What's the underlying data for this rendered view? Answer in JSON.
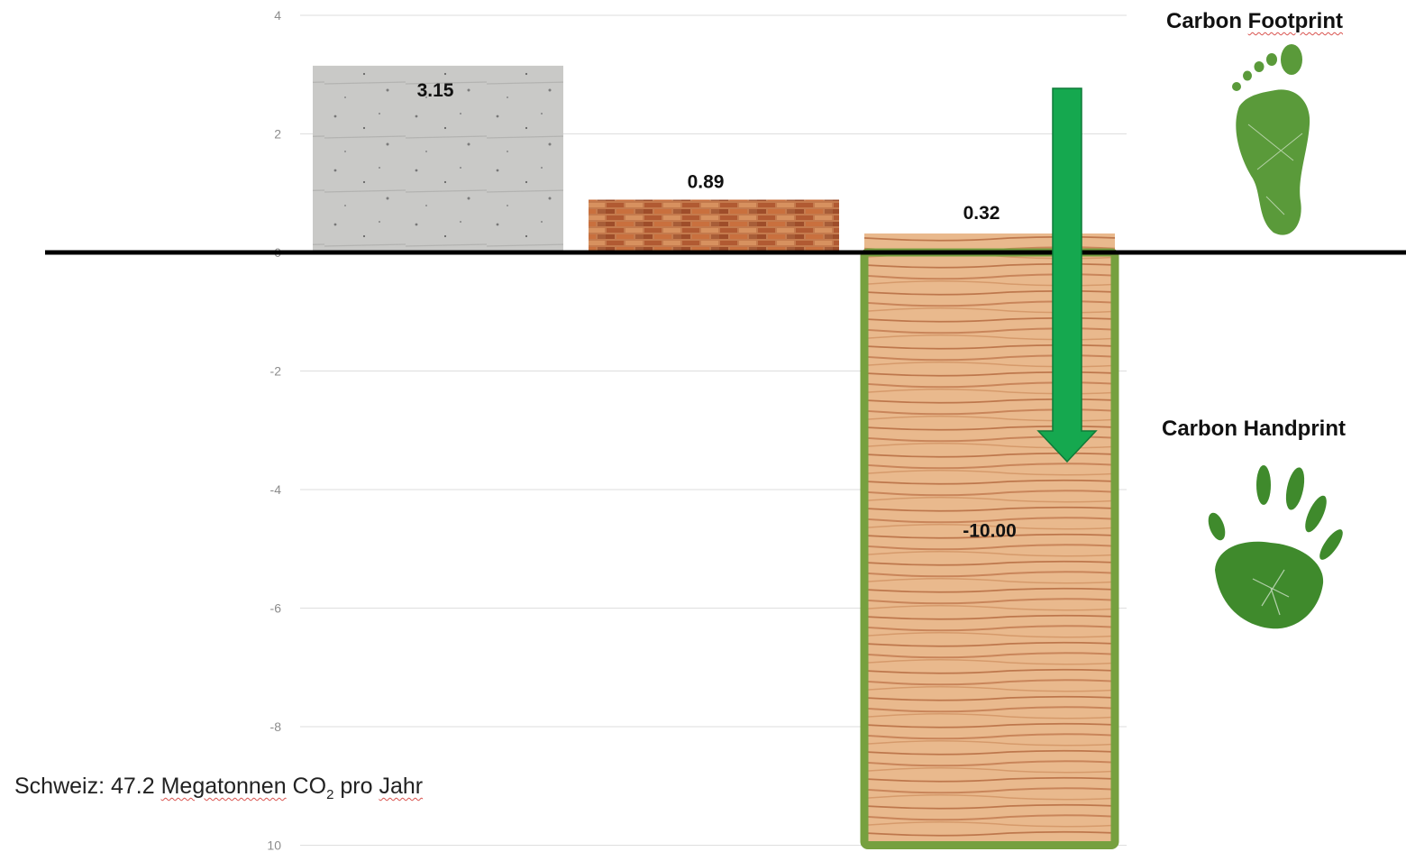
{
  "chart_data": {
    "type": "bar",
    "categories": [
      "",
      "",
      ""
    ],
    "values": [
      3.15,
      0.89,
      0.32
    ],
    "value_labels": [
      "3.15",
      "0.89",
      "0.32"
    ],
    "extra_bar": {
      "category_index": 2,
      "value": -10.0,
      "label": "-10.00"
    },
    "yticks": [
      4,
      2,
      0,
      -2,
      -4,
      -6,
      -8,
      10
    ],
    "ylim": [
      -10,
      4
    ],
    "grid": true,
    "title": "",
    "xlabel": "",
    "ylabel": "",
    "colors": {
      "concrete": "#c8c8c6",
      "brick": "#b5643a",
      "wood": "#e3a878",
      "frame": "#76a03f",
      "arrow": "#15a84f"
    }
  },
  "labels": {
    "footprint_title_a": "Carbon ",
    "footprint_title_b": "Footprint",
    "handprint_title": "Carbon Handprint",
    "note_a": "Schweiz: 47.2 ",
    "note_b": "Megatonnen",
    "note_c": " CO",
    "note_sub": "2",
    "note_d": " pro ",
    "note_e": "Jahr"
  },
  "icons": {
    "footprint": "footprint-icon",
    "handprint": "handprint-icon",
    "arrow": "arrow-down-icon"
  }
}
